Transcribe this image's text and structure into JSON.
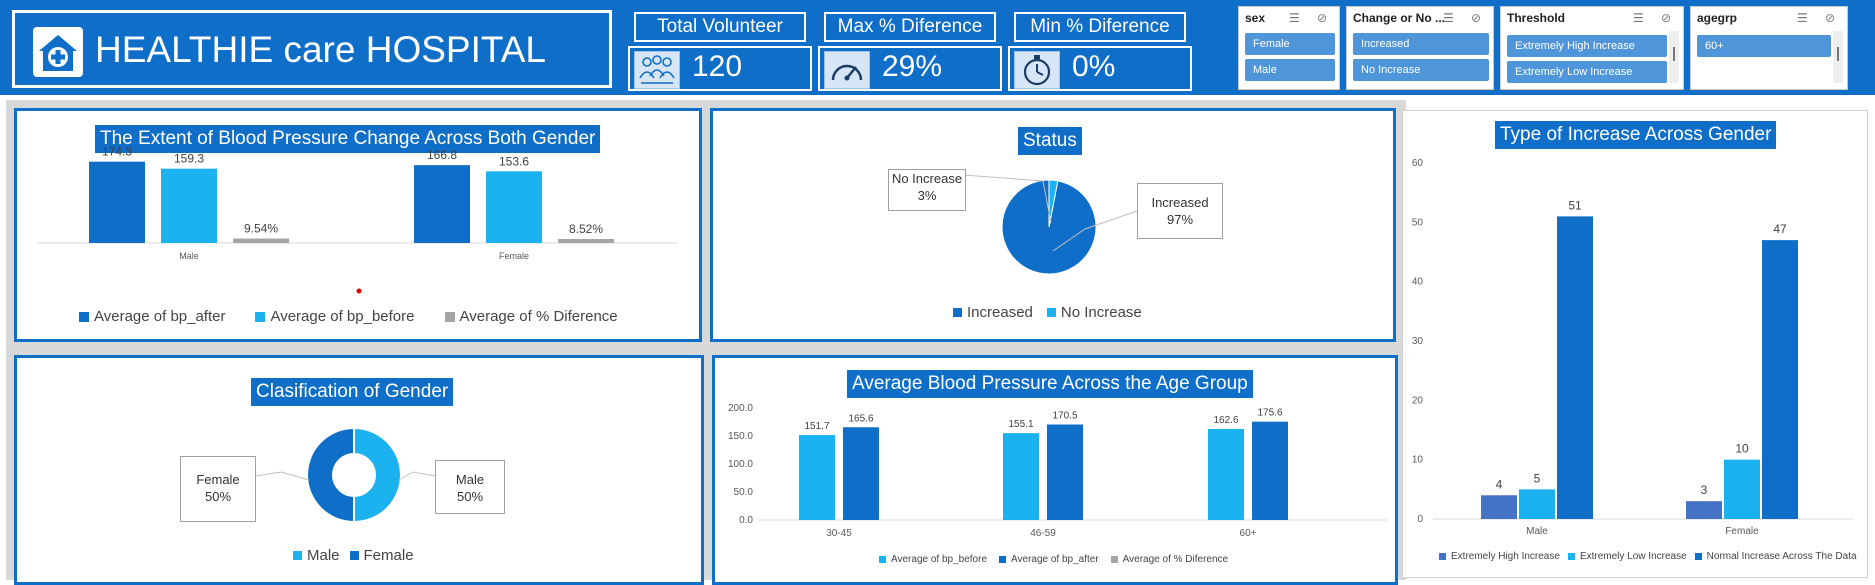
{
  "header": {
    "app_title": "HEALTHIE care HOSPITAL",
    "logo_icon": "hospital-plus-icon"
  },
  "kpis": [
    {
      "label": "Total Volunteer",
      "value": "120",
      "icon": "people-group-icon"
    },
    {
      "label": "Max % Diference",
      "value": "29%",
      "icon": "speedometer-icon"
    },
    {
      "label": "Min % Diference",
      "value": "0%",
      "icon": "stopwatch-icon"
    }
  ],
  "slicers": [
    {
      "title": "sex",
      "items": [
        "Female",
        "Male"
      ]
    },
    {
      "title": "Change or No ...",
      "items": [
        "Increased",
        "No Increase"
      ]
    },
    {
      "title": "Threshold",
      "items": [
        "Extremely High Increase",
        "Extremely Low Increase"
      ]
    },
    {
      "title": "agegrp",
      "items": [
        "60+"
      ]
    }
  ],
  "colors": {
    "brand_blue": "#0e6ec8",
    "dark_blue": "#0e6ec8",
    "light_blue": "#1cb2f0",
    "gray": "#a5a5a5",
    "medium_blue": "#4472c4"
  },
  "panels": {
    "bp_change": {
      "title": "The Extent of Blood Pressure Change Across Both Gender"
    },
    "status": {
      "title": "Status"
    },
    "gender_class": {
      "title": "Clasification of Gender"
    },
    "age_group": {
      "title": "Average Blood Pressure Across the Age Group"
    },
    "increase_type": {
      "title": "Type of Increase Across Gender"
    }
  },
  "chart_data": [
    {
      "id": "bp_change",
      "type": "bar",
      "title": "The Extent of Blood Pressure Change Across Both Gender",
      "categories": [
        "Male",
        "Female"
      ],
      "series": [
        {
          "name": "Average of bp_after",
          "values": [
            174.3,
            166.8
          ],
          "labels": [
            "174.3",
            "166.8"
          ],
          "color": "#0e6ec8"
        },
        {
          "name": "Average of bp_before",
          "values": [
            159.3,
            153.6
          ],
          "labels": [
            "159.3",
            "153.6"
          ],
          "color": "#1cb2f0"
        },
        {
          "name": "Average of % Diference",
          "values": [
            9.54,
            8.52
          ],
          "labels": [
            "9.54%",
            "8.52%"
          ],
          "color": "#a5a5a5"
        }
      ],
      "legend": "bottom"
    },
    {
      "id": "status",
      "type": "pie",
      "title": "Status",
      "categories": [
        "Increased",
        "No Increase"
      ],
      "values": [
        97,
        3
      ],
      "labels": [
        "97%",
        "3%"
      ],
      "colors": [
        "#0e6ec8",
        "#1cb2f0"
      ],
      "legend": "bottom"
    },
    {
      "id": "gender_class",
      "type": "pie",
      "subtype": "doughnut",
      "title": "Clasification of Gender",
      "categories": [
        "Male",
        "Female"
      ],
      "values": [
        50,
        50
      ],
      "labels": [
        "50%",
        "50%"
      ],
      "colors": [
        "#1cb2f0",
        "#0e6ec8"
      ],
      "legend": "bottom"
    },
    {
      "id": "age_group",
      "type": "bar",
      "title": "Average Blood Pressure Across the Age Group",
      "categories": [
        "30-45",
        "46-59",
        "60+"
      ],
      "series": [
        {
          "name": "Average of bp_before",
          "values": [
            151.7,
            155.1,
            162.6
          ],
          "labels": [
            "151.7",
            "155.1",
            "162.6"
          ],
          "color": "#1cb2f0"
        },
        {
          "name": "Average of bp_after",
          "values": [
            165.6,
            170.5,
            175.6
          ],
          "labels": [
            "165.6",
            "170.5",
            "175.6"
          ],
          "color": "#0e6ec8"
        },
        {
          "name": "Average of % Diference",
          "values": [
            0,
            0,
            0
          ],
          "labels": [
            "",
            "",
            ""
          ],
          "color": "#a5a5a5"
        }
      ],
      "yticks": [
        "0.0",
        "50.0",
        "100.0",
        "150.0",
        "200.0"
      ],
      "ylim": [
        0,
        200
      ],
      "legend": "bottom"
    },
    {
      "id": "increase_type",
      "type": "bar",
      "title": "Type of Increase Across Gender",
      "categories": [
        "Male",
        "Female"
      ],
      "series": [
        {
          "name": "Extremely High Increase",
          "values": [
            4,
            3
          ],
          "labels": [
            "4",
            "3"
          ],
          "color": "#4472c4"
        },
        {
          "name": "Extremely Low Increase",
          "values": [
            5,
            10
          ],
          "labels": [
            "5",
            "10"
          ],
          "color": "#1cb2f0"
        },
        {
          "name": "Normal Increase Across The Data",
          "values": [
            51,
            47
          ],
          "labels": [
            "51",
            "47"
          ],
          "color": "#0e6ec8"
        }
      ],
      "yticks": [
        "0",
        "10",
        "20",
        "30",
        "40",
        "50",
        "60"
      ],
      "ylim": [
        0,
        60
      ],
      "grid": false,
      "legend": "bottom"
    }
  ]
}
